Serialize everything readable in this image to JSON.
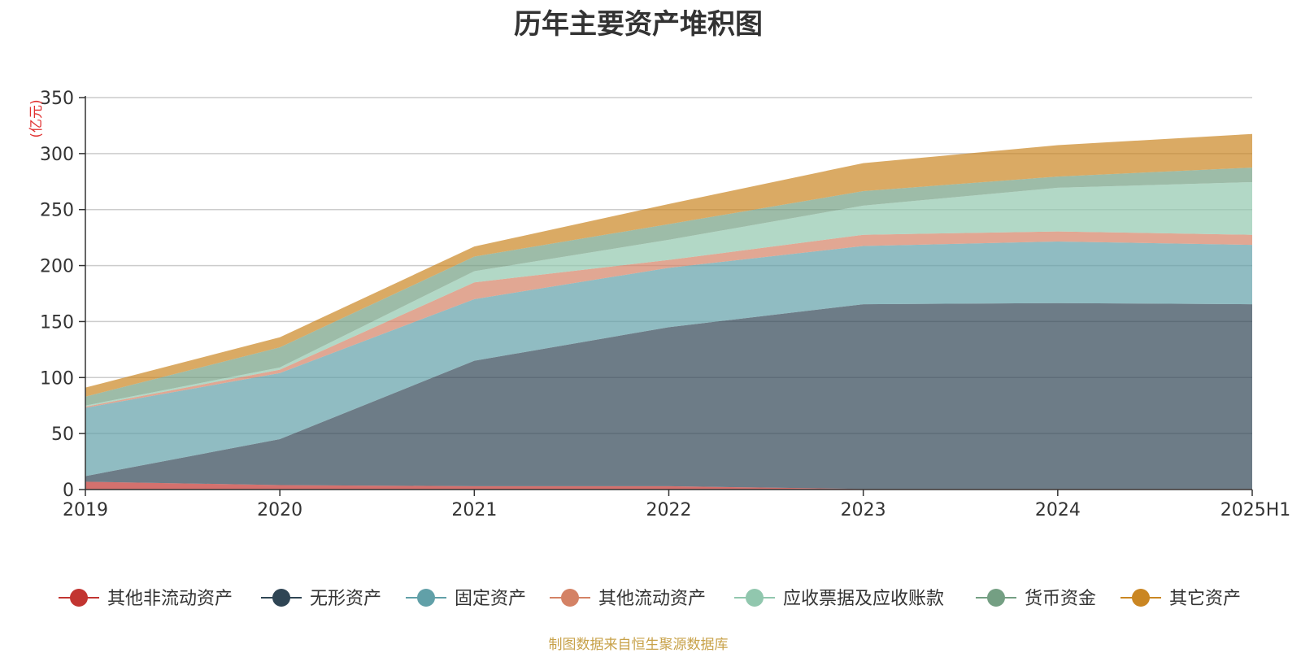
{
  "chart_data": {
    "type": "area",
    "title": "历年主要资产堆积图",
    "ylabel": "(亿元)",
    "source": "制图数据来自恒生聚源数据库",
    "categories": [
      "2019",
      "2020",
      "2021",
      "2022",
      "2023",
      "2024",
      "2025H1"
    ],
    "ylim": [
      0,
      350
    ],
    "yticks": [
      0,
      50,
      100,
      150,
      200,
      250,
      300,
      350
    ],
    "stacked": true,
    "grid": true,
    "legend_position": "bottom",
    "series": [
      {
        "name": "其他非流动资产",
        "color": "#c23531",
        "values": [
          7,
          4,
          3,
          3,
          0.5,
          0.5,
          0.5
        ]
      },
      {
        "name": "无形资产",
        "color": "#2f4554",
        "values": [
          5,
          41,
          112,
          142,
          165,
          166,
          165
        ]
      },
      {
        "name": "固定资产",
        "color": "#61a0a8",
        "values": [
          61,
          59,
          55,
          53,
          52,
          55,
          53
        ]
      },
      {
        "name": "其他流动资产",
        "color": "#d48265",
        "values": [
          1,
          3,
          15,
          7,
          10,
          9,
          9
        ]
      },
      {
        "name": "应收票据及应收账款",
        "color": "#91c7ae",
        "values": [
          1,
          2,
          10,
          18,
          26,
          39,
          47
        ]
      },
      {
        "name": "货币资金",
        "color": "#749f83",
        "values": [
          8,
          18,
          13,
          14,
          13,
          10,
          13
        ]
      },
      {
        "name": "其它资产",
        "color": "#ca8622",
        "values": [
          8,
          9,
          9,
          18,
          25,
          28,
          30
        ]
      }
    ]
  }
}
